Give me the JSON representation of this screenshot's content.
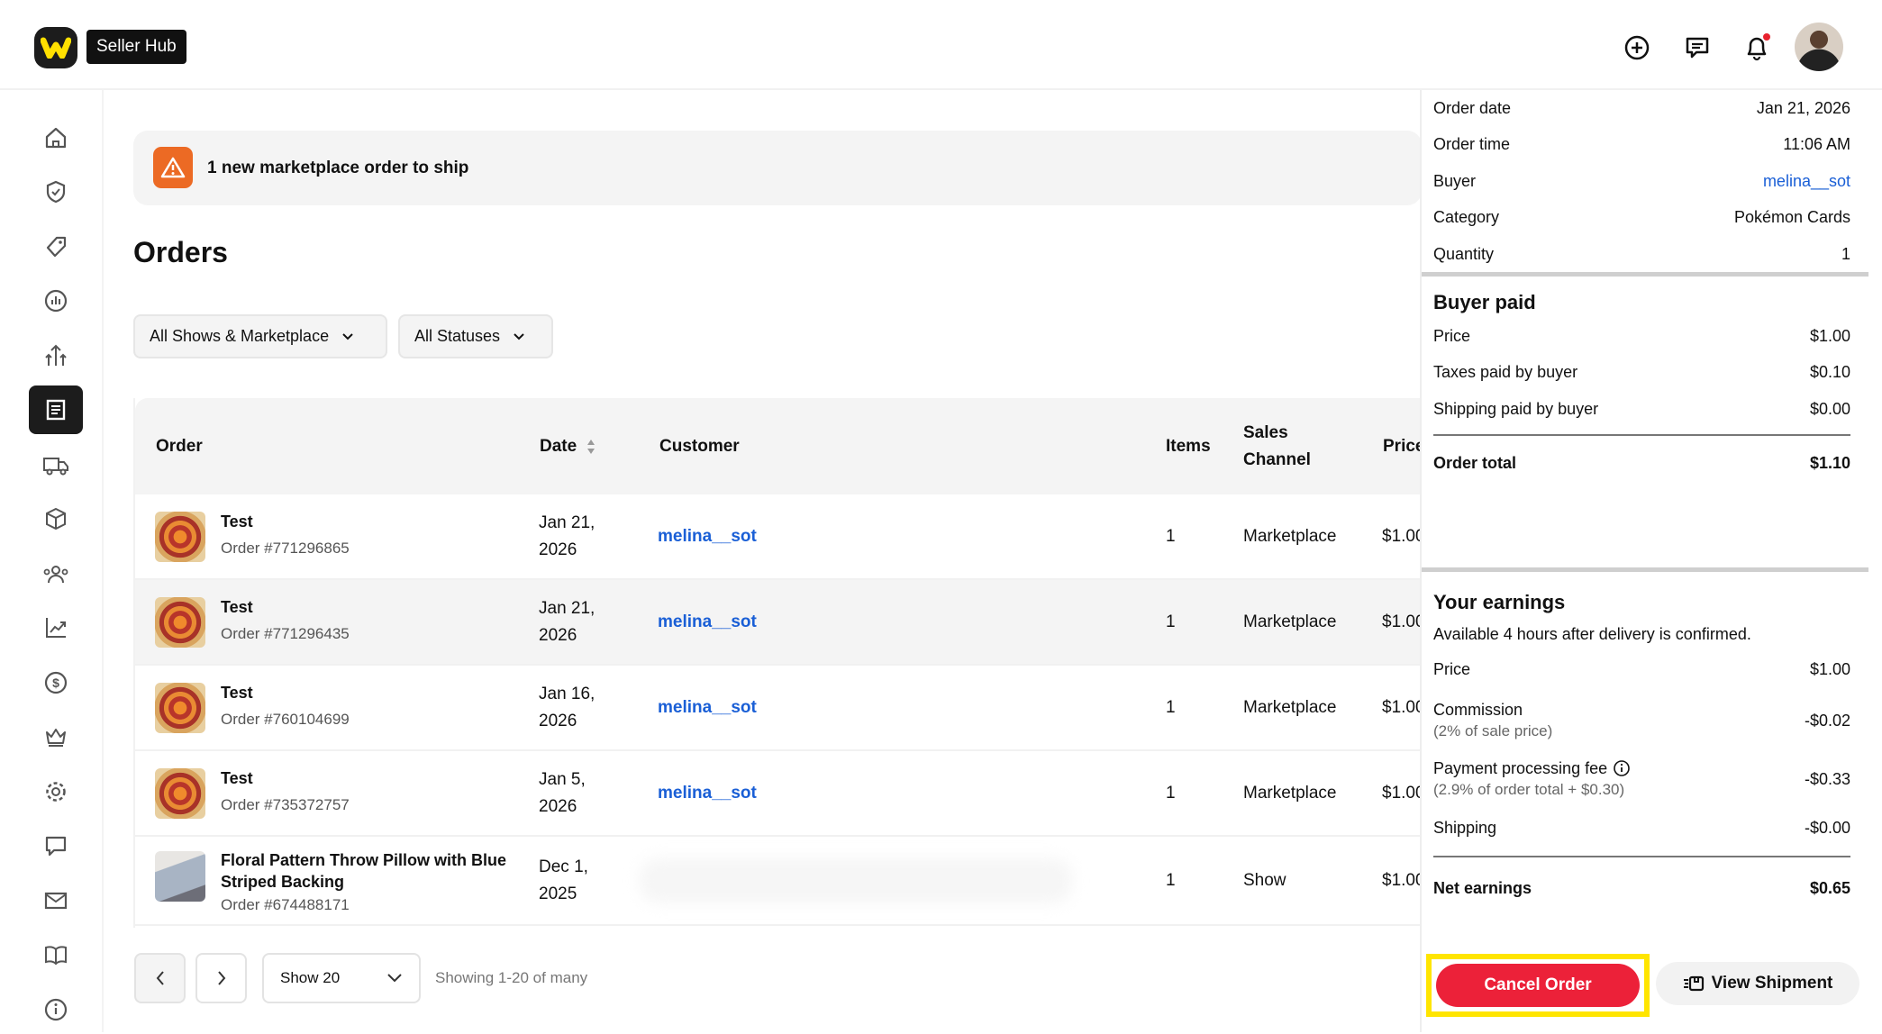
{
  "header": {
    "brand_label": "Seller Hub",
    "icons": [
      "plus-circle-icon",
      "chat-icon",
      "bell-icon",
      "avatar"
    ],
    "notification_dot_color": "#e8222e"
  },
  "sidebar": {
    "items": [
      "home",
      "shield-check",
      "tag",
      "analytics",
      "growth",
      "orders",
      "shipping",
      "packages",
      "community",
      "trends",
      "payouts",
      "loyalty",
      "settings",
      "messages",
      "mail",
      "guides",
      "info"
    ],
    "active": "orders"
  },
  "banner": {
    "text": "1 new marketplace order to ship",
    "icon": "warning-icon",
    "color": "#ec6a24"
  },
  "page": {
    "title": "Orders"
  },
  "filters": {
    "shows": "All Shows & Marketplace",
    "statuses": "All Statuses"
  },
  "table": {
    "headers": {
      "order": "Order",
      "date": "Date",
      "customer": "Customer",
      "items": "Items",
      "sales_channel": "Sales Channel",
      "price": "Price"
    },
    "rows": [
      {
        "name": "Test",
        "order_no": "Order #771296865",
        "date": "Jan 21, 2026",
        "customer": "melina__sot",
        "items": "1",
        "channel": "Marketplace",
        "price": "$1.00"
      },
      {
        "name": "Test",
        "order_no": "Order #771296435",
        "date": "Jan 21, 2026",
        "customer": "melina__sot",
        "items": "1",
        "channel": "Marketplace",
        "price": "$1.00"
      },
      {
        "name": "Test",
        "order_no": "Order #760104699",
        "date": "Jan 16, 2026",
        "customer": "melina__sot",
        "items": "1",
        "channel": "Marketplace",
        "price": "$1.00"
      },
      {
        "name": "Test",
        "order_no": "Order #735372757",
        "date": "Jan 5, 2026",
        "customer": "melina__sot",
        "items": "1",
        "channel": "Marketplace",
        "price": "$1.00"
      },
      {
        "name": "Floral Pattern Throw Pillow with Blue Striped Backing",
        "order_no": "Order #674488171",
        "date": "Dec 1, 2025",
        "customer": "",
        "items": "1",
        "channel": "Show",
        "price": "$1.00"
      }
    ]
  },
  "pagination": {
    "page_size": "Show 20",
    "summary": "Showing 1-20 of many"
  },
  "panel": {
    "details": [
      {
        "label": "Order date",
        "value": "Jan 21, 2026"
      },
      {
        "label": "Order time",
        "value": "11:06 AM"
      },
      {
        "label": "Buyer",
        "value": "melina__sot"
      },
      {
        "label": "Category",
        "value": "Pokémon Cards"
      },
      {
        "label": "Quantity",
        "value": "1"
      }
    ],
    "buyer_paid": {
      "title": "Buyer paid",
      "price_label": "Price",
      "price": "$1.00",
      "tax_label": "Taxes paid by buyer",
      "tax": "$0.10",
      "ship_label": "Shipping paid by buyer",
      "ship": "$0.00",
      "total_label": "Order total",
      "total": "$1.10"
    },
    "earnings": {
      "title": "Your earnings",
      "note": "Available 4 hours after delivery is confirmed.",
      "price_label": "Price",
      "price": "$1.00",
      "commission_label": "Commission",
      "commission_sub": "(2% of sale price)",
      "commission": "-$0.02",
      "fee_label": "Payment processing fee",
      "fee_sub": "(2.9% of order total + $0.30)",
      "fee": "-$0.33",
      "ship_label": "Shipping",
      "ship": "-$0.00",
      "net_label": "Net earnings",
      "net": "$0.65"
    },
    "cancel_label": "Cancel Order",
    "view_shipment_label": "View Shipment",
    "cancel_color": "#ec2139",
    "highlight_color": "#ffe500"
  }
}
